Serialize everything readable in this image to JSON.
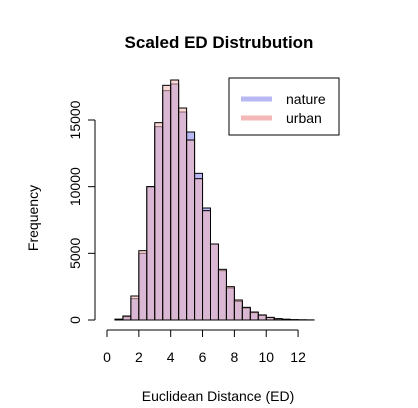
{
  "chart_data": {
    "type": "bar",
    "title": "Scaled ED Distrubution",
    "xlabel": "Euclidean Distance (ED)",
    "ylabel": "Frequency",
    "xlim": [
      0,
      13
    ],
    "ylim": [
      0,
      18000
    ],
    "bin_width": 0.5,
    "x_ticks": [
      0,
      2,
      4,
      6,
      8,
      10,
      12
    ],
    "y_ticks": [
      0,
      5000,
      10000,
      15000
    ],
    "legend_position": "top-right",
    "overlap_color": "#cc88bb",
    "series": [
      {
        "name": "nature",
        "color": "#b8b8f5",
        "bins_start": [
          0.5,
          1.0,
          1.5,
          2.0,
          2.5,
          3.0,
          3.5,
          4.0,
          4.5,
          5.0,
          5.5,
          6.0,
          6.5,
          7.0,
          7.5,
          8.0,
          8.5,
          9.0,
          9.5,
          10.0,
          10.5,
          11.0,
          11.5,
          12.0,
          12.5
        ],
        "values": [
          50,
          250,
          1600,
          5000,
          10000,
          14500,
          17200,
          17700,
          15600,
          14100,
          11000,
          8400,
          5700,
          3700,
          2400,
          1400,
          900,
          550,
          350,
          180,
          90,
          50,
          20,
          10,
          5
        ]
      },
      {
        "name": "urban",
        "color": "#f5b8b8",
        "bins_start": [
          0.5,
          1.0,
          1.5,
          2.0,
          2.5,
          3.0,
          3.5,
          4.0,
          4.5,
          5.0,
          5.5,
          6.0,
          6.5,
          7.0,
          7.5,
          8.0,
          8.5,
          9.0,
          9.5,
          10.0,
          10.5,
          11.0,
          11.5,
          12.0,
          12.5
        ],
        "values": [
          60,
          300,
          1800,
          5200,
          10000,
          14800,
          17600,
          18000,
          15900,
          13500,
          10600,
          8200,
          5700,
          3800,
          2500,
          1500,
          950,
          600,
          380,
          200,
          100,
          55,
          25,
          12,
          5
        ]
      }
    ]
  }
}
